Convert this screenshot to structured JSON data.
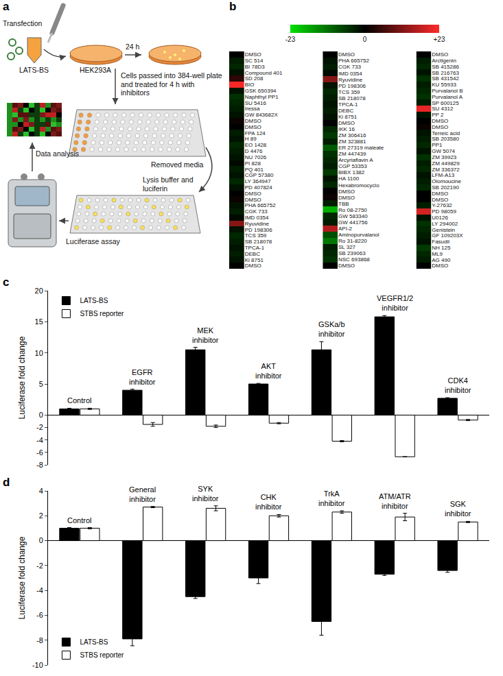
{
  "diagram": {
    "panel": "a",
    "labels": {
      "transfection": "Transfection",
      "plasmid": "LATS-BS",
      "cells": "HEK293A",
      "time": "24 h",
      "passage": "Cells passed into 384-well plate and treated for 4 h with inhibitors",
      "remove": "Removed media",
      "lysis": "Lysis buffer and luciferin",
      "assay": "Luciferase assay",
      "analysis": "Data analysis"
    }
  },
  "chart_data": [
    {
      "type": "heatmap",
      "panel": "b",
      "zlim": [
        -23,
        23
      ],
      "zticks": [
        -23,
        0,
        {
          "value": 23,
          "label": "+23"
        }
      ],
      "colors": [
        "#00e000",
        "#000000",
        "#ff2a2a"
      ],
      "tick_labels": "y",
      "columns": [
        {
          "rows": [
            "DMSO",
            "SC 514",
            "BI 78D3",
            "Compound 401",
            "SD 208",
            "BIO",
            "GSK 650394",
            "Naphthyl PP1",
            "SU 5416",
            "Iressa",
            "GW 843682X",
            "DMSO",
            "DMSO",
            "FPA 124",
            "H 89",
            "EO 1428",
            "D 4476",
            "NU 7026",
            "PI 828",
            "PQ 401",
            "CGP 57380",
            "LY 364947",
            "PD 407824",
            "DMSO",
            "DMSO",
            "PHA 665752",
            "CGK 733",
            "IMD 0354",
            "Ryuvidine",
            "PD 198306",
            "TCS 359",
            "SB 218078",
            "TPCA-1",
            "DEBC",
            "Ki 8751",
            "DMSO"
          ],
          "values": [
            0,
            -3,
            -4,
            -2,
            4,
            22,
            -2,
            -5,
            -4,
            -3,
            -2,
            1,
            0,
            -3,
            -2,
            -4,
            -3,
            -2,
            -1,
            -3,
            -2,
            -4,
            -2,
            0,
            1,
            -2,
            -3,
            -1,
            12,
            -2,
            -4,
            -3,
            -2,
            -3,
            -2,
            0
          ]
        },
        {
          "rows": [
            "DMSO",
            "PHA 665752",
            "CGK 733",
            "IMD 0354",
            "Ryuvidine",
            "PD 198306",
            "TCS 359",
            "SB 218078",
            "TPCA-1",
            "DEBC",
            "Ki 8751",
            "DMSO",
            "IKK 16",
            "ZM 306416",
            "ZM 323881",
            "ER 27319 maleate",
            "ZM 447439",
            "Arcyriaflavin A",
            "CGP 53353",
            "BIBX 1382",
            "HA 1100",
            "Hexabromocyclo",
            "DMSO",
            "DMSO",
            "TBB",
            "Ro 08-2750",
            "GW 583340",
            "GW 441756",
            "API-2",
            "Aminopurvalanol",
            "Ro 31-8220",
            "SL 327",
            "SB 239063",
            "NSC 693868",
            "DMSO"
          ],
          "values": [
            0,
            -2,
            -3,
            -1,
            12,
            -2,
            -4,
            -3,
            -2,
            -3,
            -2,
            0,
            -4,
            -6,
            -3,
            -9,
            -5,
            -4,
            -3,
            -6,
            -2,
            -4,
            0,
            1,
            -3,
            -18,
            -4,
            -3,
            16,
            -8,
            -12,
            -3,
            -4,
            -5,
            0
          ]
        },
        {
          "rows": [
            "DMSO",
            "Arctigenin",
            "SB 415286",
            "SB 216763",
            "SB 431542",
            "KU 55933",
            "Purvalanol B",
            "Purvalanol A",
            "SP 600125",
            "SU 4312",
            "PP 2",
            "DMSO",
            "DMSO",
            "Terreic acid",
            "SB 203580",
            "PP1",
            "GW 5074",
            "ZM 39923",
            "ZM 449829",
            "ZM 336372",
            "LFM-A13",
            "Olomoucine",
            "SB 202190",
            "DMSO",
            "DMSO",
            "Y-27632",
            "PD 98059",
            "U0126",
            "LY 294002",
            "Genistein",
            "GF 109203X",
            "Fasudil",
            "NH 125",
            "ML9",
            "AG 490",
            "DMSO"
          ],
          "values": [
            0,
            -3,
            -4,
            -2,
            -5,
            -3,
            -4,
            -5,
            -3,
            21,
            -2,
            0,
            1,
            -2,
            -3,
            -4,
            -2,
            -5,
            -3,
            -4,
            -2,
            -3,
            -4,
            0,
            0,
            -3,
            19,
            -2,
            -5,
            -4,
            -3,
            -2,
            -6,
            -4,
            -3,
            0
          ]
        }
      ]
    },
    {
      "type": "bar",
      "panel": "c",
      "ylabel": "Luciferase fold change",
      "categories": [
        "Control",
        "EGFR inhibitor",
        "MEK inhibitor",
        "AKT inhibitor",
        "GSKa/b inhibitor",
        "VEGFR1/2 inhibitor",
        "CDK4 inhibitor"
      ],
      "series": [
        {
          "name": "LATS-BS",
          "color": "#000000",
          "values": [
            1,
            4,
            10.5,
            5,
            10.5,
            15.8,
            2.7
          ],
          "errors": [
            0.1,
            0.15,
            0.4,
            0.1,
            1.3,
            0.2,
            0.1
          ]
        },
        {
          "name": "STBS reporter",
          "color": "#ffffff",
          "values": [
            1,
            -1.5,
            -1.8,
            -1.3,
            -4.2,
            -6.7,
            -0.8
          ],
          "errors": [
            0.1,
            0.3,
            0.2,
            0.1,
            0.1,
            0,
            0.1
          ]
        }
      ],
      "ylim": [
        -8,
        20
      ],
      "yticks": [
        -8,
        -6,
        -4,
        -2,
        0,
        5,
        10,
        15,
        20
      ],
      "grid": false,
      "legend": "upper left",
      "tick_labels": "y"
    },
    {
      "type": "bar",
      "panel": "d",
      "ylabel": "Luciferase fold change",
      "categories": [
        "Control",
        "General inhibitor",
        "SYK inhibitor",
        "CHK inhibitor",
        "TrkA inhibitor",
        "ATM/ATR inhibitor",
        "SGK inhibitor"
      ],
      "series": [
        {
          "name": "LATS-BS",
          "color": "#000000",
          "values": [
            1,
            -7.9,
            -4.5,
            -3,
            -6.5,
            -2.7,
            -2.4
          ],
          "errors": [
            0.05,
            0.55,
            0.15,
            0.45,
            1.1,
            0.1,
            0.15
          ]
        },
        {
          "name": "STBS reporter",
          "color": "#ffffff",
          "values": [
            1,
            2.7,
            2.6,
            2.0,
            2.3,
            1.9,
            1.5
          ],
          "errors": [
            0.05,
            0.05,
            0.2,
            0.1,
            0.1,
            0.3,
            0.05
          ]
        }
      ],
      "ylim": [
        -10,
        4
      ],
      "yticks": [
        -10,
        -8,
        -6,
        -4,
        -2,
        0,
        2,
        4
      ],
      "grid": false,
      "legend": "lower left",
      "tick_labels": "y"
    }
  ]
}
